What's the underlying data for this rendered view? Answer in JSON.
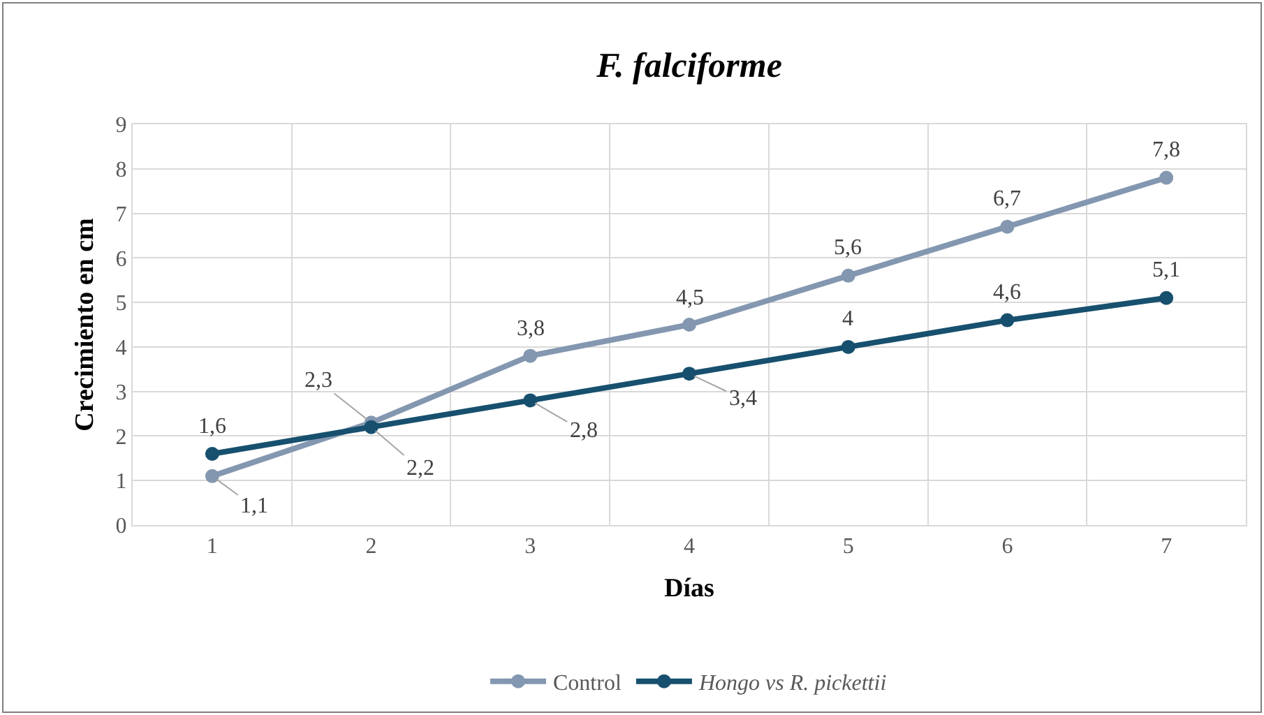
{
  "chart_data": {
    "type": "line",
    "title": "F. falciforme",
    "xlabel": "Días",
    "ylabel": "Crecimiento en cm",
    "categories": [
      "1",
      "2",
      "3",
      "4",
      "5",
      "6",
      "7"
    ],
    "series": [
      {
        "name": "Control",
        "color": "#8497b0",
        "values": [
          1.1,
          2.3,
          3.8,
          4.5,
          5.6,
          6.7,
          7.8
        ],
        "value_labels": [
          "1,1",
          "2,3",
          "3,8",
          "4,5",
          "5,6",
          "6,7",
          "7,8"
        ]
      },
      {
        "name": "Hongo vs R. pickettii",
        "color": "#17506e",
        "values": [
          1.6,
          2.2,
          2.8,
          3.4,
          4,
          4.6,
          5.1
        ],
        "value_labels": [
          "1,6",
          "2,2",
          "2,8",
          "3,4",
          "4",
          "4,6",
          "5,1"
        ]
      }
    ],
    "ylim": [
      0,
      9
    ],
    "yticks": [
      0,
      1,
      2,
      3,
      4,
      5,
      6,
      7,
      8,
      9
    ],
    "grid": true,
    "legend": "bottom",
    "marker": "circle",
    "line_style": "solid"
  }
}
